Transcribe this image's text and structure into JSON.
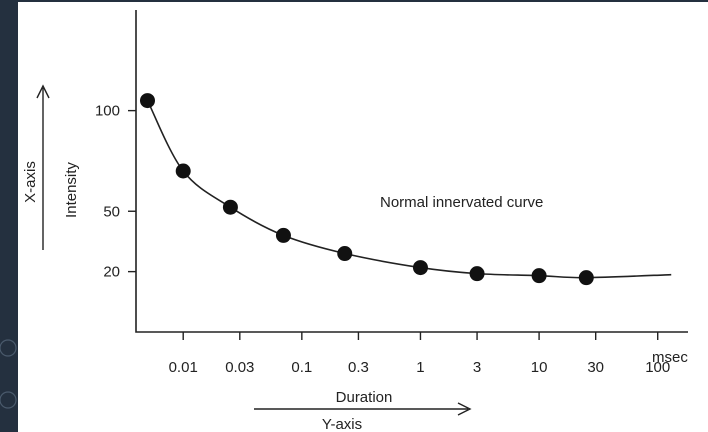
{
  "chart_data": {
    "type": "line",
    "title": "",
    "xlabel": "Duration",
    "ylabel": "Intensity",
    "x_unit": "msec",
    "x_scale": "log",
    "x_ticks": [
      {
        "value": 0.01,
        "label": "0.01"
      },
      {
        "value": 0.03,
        "label": "0.03"
      },
      {
        "value": 0.1,
        "label": "0.1"
      },
      {
        "value": 0.3,
        "label": "0.3"
      },
      {
        "value": 1,
        "label": "1"
      },
      {
        "value": 3,
        "label": "3"
      },
      {
        "value": 10,
        "label": "10"
      },
      {
        "value": 30,
        "label": "30"
      },
      {
        "value": 100,
        "label": "100"
      }
    ],
    "y_ticks": [
      {
        "value": 100,
        "label": "100"
      },
      {
        "value": 50,
        "label": "50"
      },
      {
        "value": 20,
        "label": "20"
      }
    ],
    "xlim": [
      0.004,
      180
    ],
    "ylim": [
      -10,
      150
    ],
    "grid": false,
    "series": [
      {
        "name": "Normal innervated curve",
        "x": [
          0.005,
          0.01,
          0.025,
          0.07,
          0.23,
          1,
          3,
          10,
          25
        ],
        "y": [
          105,
          70,
          52,
          38,
          29,
          22,
          19,
          18,
          17
        ]
      }
    ],
    "curve_extends_to": 130,
    "annotation": "Normal innervated curve",
    "x_arrow_label": "Y-axis",
    "y_arrow_label": "X-axis",
    "colors": {
      "background": "#24303f",
      "panel": "#ffffff",
      "ink": "#222222"
    }
  }
}
